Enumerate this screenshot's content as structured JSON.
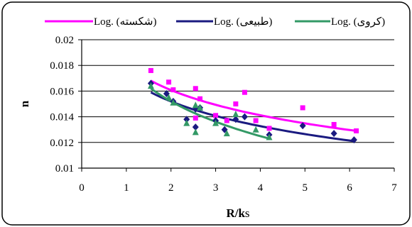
{
  "chart_data": {
    "type": "scatter",
    "xlabel_parts": [
      "R/k",
      "s"
    ],
    "ylabel": "n",
    "xlim": [
      0,
      7
    ],
    "ylim": [
      0.01,
      0.02
    ],
    "x_ticks": [
      0,
      1,
      2,
      3,
      4,
      5,
      6,
      7
    ],
    "y_ticks": [
      0.01,
      0.012,
      0.014,
      0.016,
      0.018,
      0.02
    ],
    "y_tick_labels": [
      "0.01",
      "0.012",
      "0.014",
      "0.016",
      "0.018",
      "0.02"
    ],
    "grid": "horizontal",
    "legend_position": "top",
    "trendline_type": "logarithmic",
    "series": [
      {
        "legend_label": "Log. (شکسته)",
        "color": "#ff00ff",
        "marker": "square",
        "points": [
          [
            1.55,
            0.0176
          ],
          [
            1.95,
            0.0167
          ],
          [
            2.05,
            0.0161
          ],
          [
            2.55,
            0.0162
          ],
          [
            2.55,
            0.0139
          ],
          [
            2.65,
            0.0154
          ],
          [
            3.0,
            0.0141
          ],
          [
            3.25,
            0.0137
          ],
          [
            3.45,
            0.015
          ],
          [
            3.65,
            0.0159
          ],
          [
            3.9,
            0.0137
          ],
          [
            4.2,
            0.0131
          ],
          [
            4.95,
            0.0147
          ],
          [
            5.65,
            0.0134
          ],
          [
            6.15,
            0.0129
          ]
        ],
        "trend": {
          "x_from": 1.55,
          "x_to": 6.15,
          "y_from": 0.0168,
          "y_to": 0.0129
        }
      },
      {
        "legend_label": "Log. (طبیعی)",
        "color": "#1a1a80",
        "marker": "diamond",
        "points": [
          [
            1.55,
            0.0166
          ],
          [
            1.9,
            0.0158
          ],
          [
            2.05,
            0.0152
          ],
          [
            2.35,
            0.0138
          ],
          [
            2.55,
            0.0132
          ],
          [
            2.55,
            0.0146
          ],
          [
            2.65,
            0.0147
          ],
          [
            3.0,
            0.0137
          ],
          [
            3.2,
            0.013
          ],
          [
            3.45,
            0.0138
          ],
          [
            3.65,
            0.014
          ],
          [
            4.2,
            0.0126
          ],
          [
            4.95,
            0.0133
          ],
          [
            5.65,
            0.0127
          ],
          [
            6.1,
            0.0122
          ]
        ],
        "trend": {
          "x_from": 1.55,
          "x_to": 6.1,
          "y_from": 0.0159,
          "y_to": 0.0121
        }
      },
      {
        "legend_label": "Log. (کروی)",
        "color": "#339966",
        "marker": "triangle",
        "points": [
          [
            1.55,
            0.0164
          ],
          [
            1.95,
            0.0155
          ],
          [
            2.05,
            0.0151
          ],
          [
            2.35,
            0.0135
          ],
          [
            2.55,
            0.0128
          ],
          [
            2.55,
            0.0149
          ],
          [
            2.65,
            0.0147
          ],
          [
            3.0,
            0.0135
          ],
          [
            3.25,
            0.0127
          ],
          [
            3.45,
            0.0142
          ],
          [
            3.9,
            0.013
          ],
          [
            4.2,
            0.0124
          ]
        ],
        "trend": {
          "x_from": 1.55,
          "x_to": 4.2,
          "y_from": 0.0162,
          "y_to": 0.0123
        }
      }
    ]
  }
}
